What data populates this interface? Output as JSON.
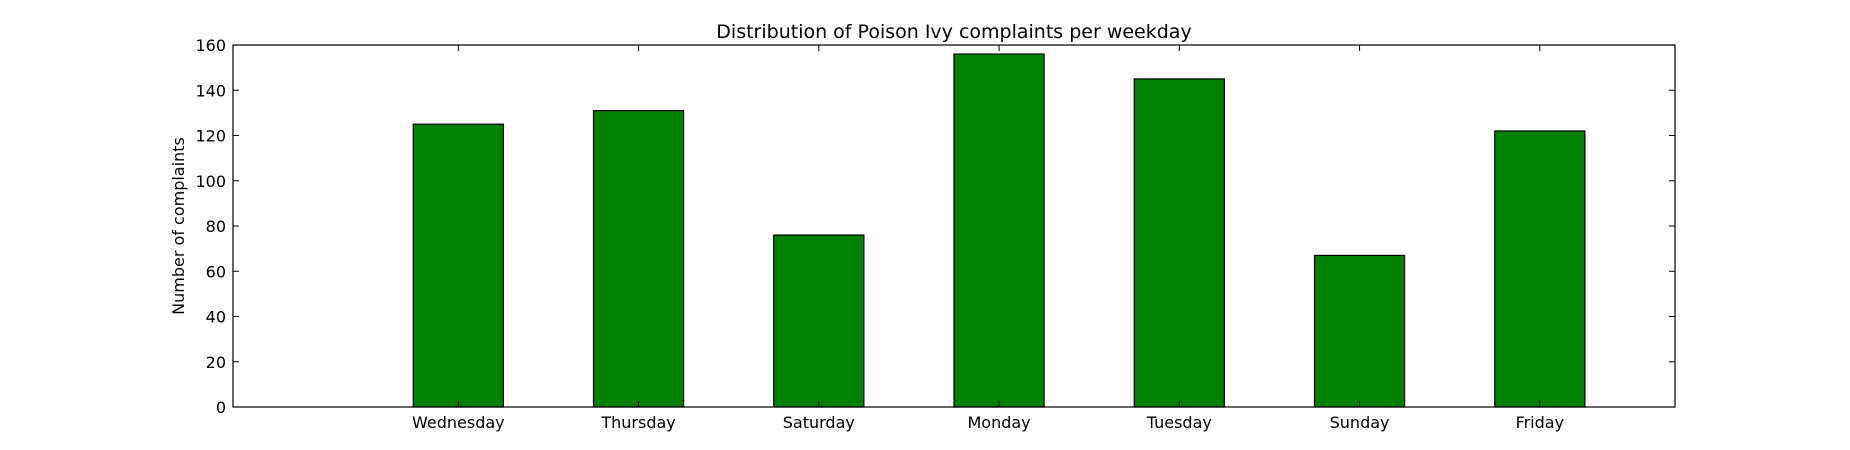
{
  "chart_data": {
    "type": "bar",
    "title": "Distribution of  Poison Ivy complaints per weekday",
    "xlabel": "",
    "ylabel": "Number of complaints",
    "categories": [
      "Wednesday",
      "Thursday",
      "Saturday",
      "Monday",
      "Tuesday",
      "Sunday",
      "Friday"
    ],
    "values": [
      125,
      131,
      76,
      156,
      145,
      67,
      122
    ],
    "ylim": [
      0,
      160
    ],
    "yticks": [
      0,
      20,
      40,
      60,
      80,
      100,
      120,
      140,
      160
    ],
    "xlim": [
      -1.25,
      6.75
    ],
    "grid": false,
    "legend": "none",
    "colors": {
      "bar": "#008000",
      "edge": "#000000",
      "background": "#ffffff"
    }
  }
}
